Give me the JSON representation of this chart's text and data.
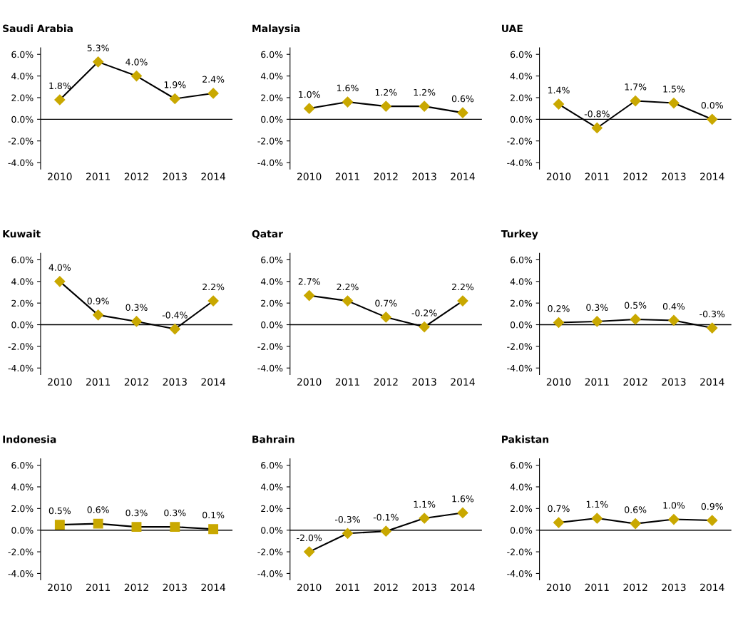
{
  "chart_data": [
    {
      "type": "line",
      "title": "Saudi Arabia",
      "categories": [
        "2010",
        "2011",
        "2012",
        "2013",
        "2014"
      ],
      "series": [
        {
          "color": "#c9a800",
          "values": [
            1.8,
            5.3,
            4.0,
            1.9,
            2.4
          ],
          "value_labels": [
            "1.8%",
            "5.3%",
            "4.0%",
            "1.9%",
            "2.4%"
          ]
        }
      ],
      "ylim": [
        -4.6,
        6.6
      ],
      "yticks": [
        {
          "value": -4,
          "label": "-4.0%"
        },
        {
          "value": -2,
          "label": "-2.0%"
        },
        {
          "value": 0,
          "label": "0.0%"
        },
        {
          "value": 2,
          "label": "2.0%"
        },
        {
          "value": 4,
          "label": "4.0%"
        },
        {
          "value": 6,
          "label": "6.0%"
        }
      ],
      "ref_lines": [
        {
          "axis": "y",
          "value": 0,
          "color": "#000000"
        }
      ],
      "marker": "diamond",
      "grid": false
    },
    {
      "type": "line",
      "title": "Malaysia",
      "categories": [
        "2010",
        "2011",
        "2012",
        "2013",
        "2014"
      ],
      "series": [
        {
          "color": "#c9a800",
          "values": [
            1.0,
            1.6,
            1.2,
            1.2,
            0.6
          ],
          "value_labels": [
            "1.0%",
            "1.6%",
            "1.2%",
            "1.2%",
            "0.6%"
          ]
        }
      ],
      "ylim": [
        -4.6,
        6.6
      ],
      "yticks": [
        {
          "value": -4,
          "label": "-4.0%"
        },
        {
          "value": -2,
          "label": "-2.0%"
        },
        {
          "value": 0,
          "label": "0.0%"
        },
        {
          "value": 2,
          "label": "2.0%"
        },
        {
          "value": 4,
          "label": "4.0%"
        },
        {
          "value": 6,
          "label": "6.0%"
        }
      ],
      "ref_lines": [
        {
          "axis": "y",
          "value": 0,
          "color": "#000000"
        }
      ],
      "marker": "diamond",
      "grid": false
    },
    {
      "type": "line",
      "title": "UAE",
      "categories": [
        "2010",
        "2011",
        "2012",
        "2013",
        "2014"
      ],
      "series": [
        {
          "color": "#c9a800",
          "values": [
            1.4,
            -0.8,
            1.7,
            1.5,
            0.0
          ],
          "value_labels": [
            "1.4%",
            "-0.8%",
            "1.7%",
            "1.5%",
            "0.0%"
          ]
        }
      ],
      "ylim": [
        -4.6,
        6.6
      ],
      "yticks": [
        {
          "value": -4,
          "label": "-4.0%"
        },
        {
          "value": -2,
          "label": "-2.0%"
        },
        {
          "value": 0,
          "label": "0.0%"
        },
        {
          "value": 2,
          "label": "2.0%"
        },
        {
          "value": 4,
          "label": "4.0%"
        },
        {
          "value": 6,
          "label": "6.0%"
        }
      ],
      "ref_lines": [
        {
          "axis": "y",
          "value": 0,
          "color": "#000000"
        }
      ],
      "marker": "diamond",
      "grid": false
    },
    {
      "type": "line",
      "title": "Kuwait",
      "categories": [
        "2010",
        "2011",
        "2012",
        "2013",
        "2014"
      ],
      "series": [
        {
          "color": "#c9a800",
          "values": [
            4.0,
            0.9,
            0.3,
            -0.4,
            2.2
          ],
          "value_labels": [
            "4.0%",
            "0.9%",
            "0.3%",
            "-0.4%",
            "2.2%"
          ]
        }
      ],
      "ylim": [
        -4.6,
        6.6
      ],
      "yticks": [
        {
          "value": -4,
          "label": "-4.0%"
        },
        {
          "value": -2,
          "label": "-2.0%"
        },
        {
          "value": 0,
          "label": "0.0%"
        },
        {
          "value": 2,
          "label": "2.0%"
        },
        {
          "value": 4,
          "label": "4.0%"
        },
        {
          "value": 6,
          "label": "6.0%"
        }
      ],
      "ref_lines": [
        {
          "axis": "y",
          "value": 0,
          "color": "#000000"
        }
      ],
      "marker": "diamond",
      "grid": false
    },
    {
      "type": "line",
      "title": "Qatar",
      "categories": [
        "2010",
        "2011",
        "2012",
        "2013",
        "2014"
      ],
      "series": [
        {
          "color": "#c9a800",
          "values": [
            2.7,
            2.2,
            0.7,
            -0.2,
            2.2
          ],
          "value_labels": [
            "2.7%",
            "2.2%",
            "0.7%",
            "-0.2%",
            "2.2%"
          ]
        }
      ],
      "ylim": [
        -4.6,
        6.6
      ],
      "yticks": [
        {
          "value": -4,
          "label": "-4.0%"
        },
        {
          "value": -2,
          "label": "-2.0%"
        },
        {
          "value": 0,
          "label": "0.0%"
        },
        {
          "value": 2,
          "label": "2.0%"
        },
        {
          "value": 4,
          "label": "4.0%"
        },
        {
          "value": 6,
          "label": "6.0%"
        }
      ],
      "ref_lines": [
        {
          "axis": "y",
          "value": 0,
          "color": "#000000"
        }
      ],
      "marker": "diamond",
      "grid": false
    },
    {
      "type": "line",
      "title": "Turkey",
      "categories": [
        "2010",
        "2011",
        "2012",
        "2013",
        "2014"
      ],
      "series": [
        {
          "color": "#c9a800",
          "values": [
            0.2,
            0.3,
            0.5,
            0.4,
            -0.3
          ],
          "value_labels": [
            "0.2%",
            "0.3%",
            "0.5%",
            "0.4%",
            "-0.3%"
          ]
        }
      ],
      "ylim": [
        -4.6,
        6.6
      ],
      "yticks": [
        {
          "value": -4,
          "label": "-4.0%"
        },
        {
          "value": -2,
          "label": "-2.0%"
        },
        {
          "value": 0,
          "label": "0.0%"
        },
        {
          "value": 2,
          "label": "2.0%"
        },
        {
          "value": 4,
          "label": "4.0%"
        },
        {
          "value": 6,
          "label": "6.0%"
        }
      ],
      "ref_lines": [
        {
          "axis": "y",
          "value": 0,
          "color": "#000000"
        }
      ],
      "marker": "diamond",
      "grid": false
    },
    {
      "type": "line",
      "title": "Indonesia",
      "categories": [
        "2010",
        "2011",
        "2012",
        "2013",
        "2014"
      ],
      "series": [
        {
          "color": "#c9a800",
          "values": [
            0.5,
            0.6,
            0.3,
            0.3,
            0.1
          ],
          "value_labels": [
            "0.5%",
            "0.6%",
            "0.3%",
            "0.3%",
            "0.1%"
          ]
        }
      ],
      "ylim": [
        -4.6,
        6.6
      ],
      "yticks": [
        {
          "value": -4,
          "label": "-4.0%"
        },
        {
          "value": -2,
          "label": "-2.0%"
        },
        {
          "value": 0,
          "label": "0.0%"
        },
        {
          "value": 2,
          "label": "2.0%"
        },
        {
          "value": 4,
          "label": "4.0%"
        },
        {
          "value": 6,
          "label": "6.0%"
        }
      ],
      "ref_lines": [
        {
          "axis": "y",
          "value": 0,
          "color": "#000000"
        }
      ],
      "marker": "square",
      "grid": false
    },
    {
      "type": "line",
      "title": "Bahrain",
      "categories": [
        "2010",
        "2011",
        "2012",
        "2013",
        "2014"
      ],
      "series": [
        {
          "color": "#c9a800",
          "values": [
            -2.0,
            -0.3,
            -0.1,
            1.1,
            1.6
          ],
          "value_labels": [
            "-2.0%",
            "-0.3%",
            "-0.1%",
            "1.1%",
            "1.6%"
          ]
        }
      ],
      "ylim": [
        -4.6,
        6.6
      ],
      "yticks": [
        {
          "value": -4,
          "label": "-4.0%"
        },
        {
          "value": -2,
          "label": "-2.0%"
        },
        {
          "value": 0,
          "label": "0.0%"
        },
        {
          "value": 2,
          "label": "2.0%"
        },
        {
          "value": 4,
          "label": "4.0%"
        },
        {
          "value": 6,
          "label": "6.0%"
        }
      ],
      "ref_lines": [
        {
          "axis": "y",
          "value": 0,
          "color": "#000000"
        }
      ],
      "marker": "diamond",
      "grid": false
    },
    {
      "type": "line",
      "title": "Pakistan",
      "categories": [
        "2010",
        "2011",
        "2012",
        "2013",
        "2014"
      ],
      "series": [
        {
          "color": "#c9a800",
          "values": [
            0.7,
            1.1,
            0.6,
            1.0,
            0.9
          ],
          "value_labels": [
            "0.7%",
            "1.1%",
            "0.6%",
            "1.0%",
            "0.9%"
          ]
        }
      ],
      "ylim": [
        -4.6,
        6.6
      ],
      "yticks": [
        {
          "value": -4,
          "label": "-4.0%"
        },
        {
          "value": -2,
          "label": "-2.0%"
        },
        {
          "value": 0,
          "label": "0.0%"
        },
        {
          "value": 2,
          "label": "2.0%"
        },
        {
          "value": 4,
          "label": "4.0%"
        },
        {
          "value": 6,
          "label": "6.0%"
        }
      ],
      "ref_lines": [
        {
          "axis": "y",
          "value": 0,
          "color": "#000000"
        }
      ],
      "marker": "diamond",
      "grid": false
    }
  ]
}
